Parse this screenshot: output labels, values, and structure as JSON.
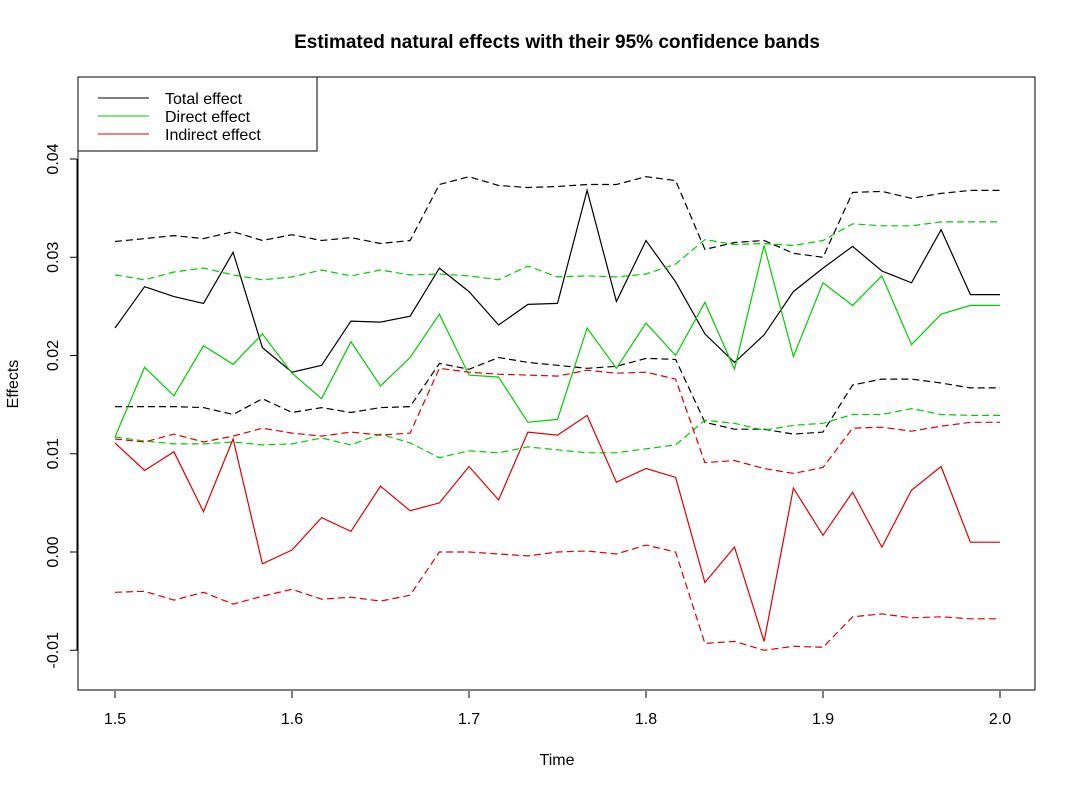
{
  "chart_data": {
    "type": "line",
    "title": "Estimated natural effects with their 95% confidence bands",
    "xlabel": "Time",
    "ylabel": "Effects",
    "xlim": [
      1.5,
      2.0
    ],
    "ylim": [
      -0.014,
      0.047
    ],
    "x_ticks": [
      "1.5",
      "1.6",
      "1.7",
      "1.8",
      "1.9",
      "2.0"
    ],
    "y_ticks": [
      "-0.01",
      "0.00",
      "0.01",
      "0.02",
      "0.03",
      "0.04"
    ],
    "grid": false,
    "legend_position": "top-left",
    "x": [
      1.5,
      1.5167,
      1.5333,
      1.55,
      1.5667,
      1.5833,
      1.6,
      1.6167,
      1.6333,
      1.65,
      1.6667,
      1.6833,
      1.7,
      1.7167,
      1.7333,
      1.75,
      1.7667,
      1.7833,
      1.8,
      1.8167,
      1.8333,
      1.85,
      1.8667,
      1.8833,
      1.9,
      1.9167,
      1.9333,
      1.95,
      1.9667,
      1.9833,
      2.0
    ],
    "series": [
      {
        "name": "Total effect",
        "color": "#000000",
        "values": [
          0.0228,
          0.027,
          0.026,
          0.0253,
          0.0305,
          0.0208,
          0.0183,
          0.019,
          0.0235,
          0.0234,
          0.024,
          0.0289,
          0.0265,
          0.0231,
          0.0252,
          0.0253,
          0.0368,
          0.0255,
          0.0317,
          0.0275,
          0.0222,
          0.0193,
          0.0221,
          0.0265,
          0.0289,
          0.0311,
          0.0286,
          0.0274,
          0.0328,
          0.0262,
          0.0262
        ],
        "lower": [
          0.0148,
          0.0148,
          0.0148,
          0.0147,
          0.014,
          0.0156,
          0.0142,
          0.0147,
          0.0142,
          0.0147,
          0.0148,
          0.0192,
          0.0186,
          0.0198,
          0.0193,
          0.019,
          0.0187,
          0.0189,
          0.0197,
          0.0196,
          0.0132,
          0.0125,
          0.0125,
          0.012,
          0.0122,
          0.017,
          0.0176,
          0.0176,
          0.0172,
          0.0167,
          0.0167
        ],
        "upper": [
          0.0316,
          0.0319,
          0.0322,
          0.0319,
          0.0326,
          0.0317,
          0.0323,
          0.0317,
          0.032,
          0.0314,
          0.0317,
          0.0374,
          0.0382,
          0.0373,
          0.0371,
          0.0372,
          0.0374,
          0.0374,
          0.0382,
          0.0378,
          0.0308,
          0.0315,
          0.0317,
          0.0304,
          0.03,
          0.0366,
          0.0367,
          0.036,
          0.0365,
          0.0368,
          0.0368
        ]
      },
      {
        "name": "Direct effect",
        "color": "#00cc00",
        "values": [
          0.0117,
          0.0188,
          0.0159,
          0.021,
          0.0191,
          0.0222,
          0.0182,
          0.0156,
          0.0214,
          0.0169,
          0.0198,
          0.0242,
          0.018,
          0.0178,
          0.0132,
          0.0135,
          0.0228,
          0.0187,
          0.0233,
          0.02,
          0.0254,
          0.0186,
          0.0312,
          0.0199,
          0.0274,
          0.0251,
          0.0281,
          0.0211,
          0.0242,
          0.0251,
          0.0251
        ],
        "lower": [
          0.0117,
          0.0113,
          0.011,
          0.011,
          0.0112,
          0.0109,
          0.011,
          0.0116,
          0.0109,
          0.012,
          0.0111,
          0.0096,
          0.0103,
          0.0101,
          0.0107,
          0.0104,
          0.0101,
          0.0101,
          0.0105,
          0.0109,
          0.0134,
          0.0131,
          0.0124,
          0.0129,
          0.0131,
          0.014,
          0.014,
          0.0146,
          0.014,
          0.0139,
          0.0139
        ],
        "upper": [
          0.0282,
          0.0277,
          0.0285,
          0.0289,
          0.0282,
          0.0277,
          0.028,
          0.0287,
          0.0281,
          0.0287,
          0.0282,
          0.0283,
          0.0281,
          0.0277,
          0.0291,
          0.028,
          0.0281,
          0.028,
          0.0283,
          0.0293,
          0.0318,
          0.0313,
          0.0314,
          0.0312,
          0.0317,
          0.0334,
          0.0332,
          0.0332,
          0.0336,
          0.0336,
          0.0336
        ]
      },
      {
        "name": "Indirect effect",
        "color": "#dd0000",
        "values": [
          0.0111,
          0.0083,
          0.0102,
          0.0041,
          0.0115,
          -0.0012,
          0.0002,
          0.0035,
          0.0021,
          0.0067,
          0.0042,
          0.005,
          0.0087,
          0.0053,
          0.0122,
          0.0119,
          0.0139,
          0.0071,
          0.0085,
          0.0076,
          -0.0031,
          0.0005,
          -0.0091,
          0.0065,
          0.0017,
          0.0061,
          0.0005,
          0.0063,
          0.0087,
          0.001,
          0.001
        ],
        "lower": [
          -0.0041,
          -0.004,
          -0.0049,
          -0.0041,
          -0.0053,
          -0.0045,
          -0.0038,
          -0.0048,
          -0.0046,
          -0.005,
          -0.0044,
          0.0,
          0.0,
          -0.0002,
          -0.0004,
          0.0,
          0.0001,
          -0.0002,
          0.0007,
          0.0,
          -0.0093,
          -0.0091,
          -0.01,
          -0.0096,
          -0.0097,
          -0.0066,
          -0.0063,
          -0.0067,
          -0.0066,
          -0.0068,
          -0.0068
        ],
        "upper": [
          0.0115,
          0.0112,
          0.012,
          0.0112,
          0.0118,
          0.0126,
          0.0121,
          0.0118,
          0.0122,
          0.0119,
          0.0121,
          0.0187,
          0.0183,
          0.0181,
          0.018,
          0.0179,
          0.0185,
          0.0182,
          0.0183,
          0.0176,
          0.0091,
          0.0093,
          0.0085,
          0.008,
          0.0086,
          0.0126,
          0.0127,
          0.0123,
          0.0128,
          0.0132,
          0.0132
        ]
      }
    ]
  }
}
